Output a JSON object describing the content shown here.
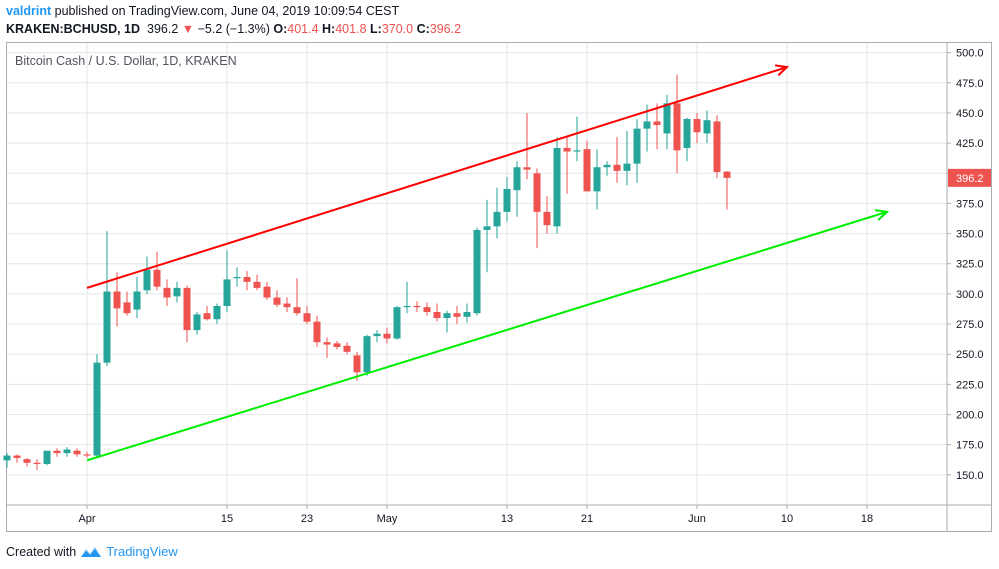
{
  "header": {
    "publisher": "valdrint",
    "published_text": "published on TradingView.com, June 04, 2019 10:09:54 CEST",
    "symbol": "KRAKEN:BCHUSD, 1D",
    "last": "396.2",
    "change_arrow": "▼",
    "change": "−5.2 (−1.3%)",
    "o_label": "O:",
    "o_value": "401.4",
    "h_label": "H:",
    "h_value": "401.8",
    "l_label": "L:",
    "l_value": "370.0",
    "c_label": "C:",
    "c_value": "396.2"
  },
  "footer": {
    "created_with": "Created with",
    "brand": "TradingView"
  },
  "colors": {
    "up": "#26a69a",
    "down": "#ef5350",
    "resistance": "#ff0000",
    "support": "#00ee00",
    "grid": "#e4e6ea",
    "brand": "#2196f3"
  },
  "chart_data": {
    "type": "candlestick",
    "title": "Bitcoin Cash / U.S. Dollar, 1D, KRAKEN",
    "last_price_label": "396.2",
    "y_ticks": [
      "500.0",
      "475.0",
      "450.0",
      "425.0",
      "400.0",
      "375.0",
      "350.0",
      "325.0",
      "300.0",
      "275.0",
      "250.0",
      "225.0",
      "200.0",
      "175.0",
      "150.0"
    ],
    "ylim": [
      125,
      508
    ],
    "x_ticks": [
      {
        "date": "2019-04-01",
        "label": "Apr"
      },
      {
        "date": "2019-04-15",
        "label": "15"
      },
      {
        "date": "2019-04-23",
        "label": "23"
      },
      {
        "date": "2019-05-01",
        "label": "May"
      },
      {
        "date": "2019-05-13",
        "label": "13"
      },
      {
        "date": "2019-05-21",
        "label": "21"
      },
      {
        "date": "2019-06-01",
        "label": "Jun"
      },
      {
        "date": "2019-06-10",
        "label": "10"
      },
      {
        "date": "2019-06-18",
        "label": "18"
      }
    ],
    "xlim": [
      "2019-03-24",
      "2019-06-26"
    ],
    "candles": [
      {
        "date": "2019-03-24",
        "o": 162,
        "h": 168,
        "l": 156,
        "c": 166
      },
      {
        "date": "2019-03-25",
        "o": 166,
        "h": 167,
        "l": 160,
        "c": 164
      },
      {
        "date": "2019-03-26",
        "o": 163,
        "h": 164,
        "l": 157,
        "c": 160
      },
      {
        "date": "2019-03-27",
        "o": 160,
        "h": 163,
        "l": 154,
        "c": 159
      },
      {
        "date": "2019-03-28",
        "o": 159,
        "h": 167,
        "l": 158,
        "c": 170
      },
      {
        "date": "2019-03-29",
        "o": 170,
        "h": 172,
        "l": 165,
        "c": 168
      },
      {
        "date": "2019-03-30",
        "o": 168,
        "h": 173,
        "l": 165,
        "c": 171
      },
      {
        "date": "2019-03-31",
        "o": 170,
        "h": 172,
        "l": 165,
        "c": 167
      },
      {
        "date": "2019-04-01",
        "o": 167,
        "h": 169,
        "l": 164,
        "c": 166
      },
      {
        "date": "2019-04-02",
        "o": 166,
        "h": 250,
        "l": 165,
        "c": 243
      },
      {
        "date": "2019-04-03",
        "o": 243,
        "h": 352,
        "l": 240,
        "c": 302
      },
      {
        "date": "2019-04-04",
        "o": 302,
        "h": 318,
        "l": 273,
        "c": 288
      },
      {
        "date": "2019-04-05",
        "o": 293,
        "h": 302,
        "l": 282,
        "c": 284
      },
      {
        "date": "2019-04-06",
        "o": 287,
        "h": 314,
        "l": 280,
        "c": 302
      },
      {
        "date": "2019-04-07",
        "o": 303,
        "h": 331,
        "l": 300,
        "c": 320
      },
      {
        "date": "2019-04-08",
        "o": 320,
        "h": 335,
        "l": 303,
        "c": 306
      },
      {
        "date": "2019-04-09",
        "o": 305,
        "h": 312,
        "l": 290,
        "c": 297
      },
      {
        "date": "2019-04-10",
        "o": 298,
        "h": 310,
        "l": 293,
        "c": 305
      },
      {
        "date": "2019-04-11",
        "o": 305,
        "h": 307,
        "l": 260,
        "c": 270
      },
      {
        "date": "2019-04-12",
        "o": 270,
        "h": 285,
        "l": 266,
        "c": 283
      },
      {
        "date": "2019-04-13",
        "o": 284,
        "h": 290,
        "l": 278,
        "c": 279
      },
      {
        "date": "2019-04-14",
        "o": 279,
        "h": 292,
        "l": 275,
        "c": 290
      },
      {
        "date": "2019-04-15",
        "o": 290,
        "h": 336,
        "l": 285,
        "c": 312
      },
      {
        "date": "2019-04-16",
        "o": 313,
        "h": 322,
        "l": 306,
        "c": 314
      },
      {
        "date": "2019-04-17",
        "o": 314,
        "h": 319,
        "l": 303,
        "c": 310
      },
      {
        "date": "2019-04-18",
        "o": 310,
        "h": 316,
        "l": 303,
        "c": 305
      },
      {
        "date": "2019-04-19",
        "o": 306,
        "h": 310,
        "l": 295,
        "c": 297
      },
      {
        "date": "2019-04-20",
        "o": 297,
        "h": 303,
        "l": 289,
        "c": 291
      },
      {
        "date": "2019-04-21",
        "o": 292,
        "h": 297,
        "l": 285,
        "c": 289
      },
      {
        "date": "2019-04-22",
        "o": 289,
        "h": 313,
        "l": 282,
        "c": 284
      },
      {
        "date": "2019-04-23",
        "o": 284,
        "h": 290,
        "l": 275,
        "c": 277
      },
      {
        "date": "2019-04-24",
        "o": 277,
        "h": 282,
        "l": 256,
        "c": 260
      },
      {
        "date": "2019-04-25",
        "o": 260,
        "h": 264,
        "l": 247,
        "c": 258
      },
      {
        "date": "2019-04-26",
        "o": 259,
        "h": 261,
        "l": 254,
        "c": 256
      },
      {
        "date": "2019-04-27",
        "o": 257,
        "h": 260,
        "l": 250,
        "c": 252
      },
      {
        "date": "2019-04-28",
        "o": 249,
        "h": 252,
        "l": 228,
        "c": 235
      },
      {
        "date": "2019-04-29",
        "o": 235,
        "h": 266,
        "l": 232,
        "c": 265
      },
      {
        "date": "2019-04-30",
        "o": 265,
        "h": 270,
        "l": 260,
        "c": 267
      },
      {
        "date": "2019-05-01",
        "o": 267,
        "h": 272,
        "l": 259,
        "c": 263
      },
      {
        "date": "2019-05-02",
        "o": 263,
        "h": 290,
        "l": 262,
        "c": 289
      },
      {
        "date": "2019-05-03",
        "o": 289,
        "h": 310,
        "l": 284,
        "c": 290
      },
      {
        "date": "2019-05-04",
        "o": 290,
        "h": 294,
        "l": 285,
        "c": 289
      },
      {
        "date": "2019-05-05",
        "o": 289,
        "h": 293,
        "l": 282,
        "c": 285
      },
      {
        "date": "2019-05-06",
        "o": 285,
        "h": 292,
        "l": 277,
        "c": 280
      },
      {
        "date": "2019-05-07",
        "o": 280,
        "h": 286,
        "l": 268,
        "c": 284
      },
      {
        "date": "2019-05-08",
        "o": 284,
        "h": 290,
        "l": 275,
        "c": 281
      },
      {
        "date": "2019-05-09",
        "o": 281,
        "h": 292,
        "l": 276,
        "c": 285
      },
      {
        "date": "2019-05-10",
        "o": 284,
        "h": 355,
        "l": 282,
        "c": 353
      },
      {
        "date": "2019-05-11",
        "o": 353,
        "h": 378,
        "l": 318,
        "c": 356
      },
      {
        "date": "2019-05-12",
        "o": 356,
        "h": 388,
        "l": 346,
        "c": 368
      },
      {
        "date": "2019-05-13",
        "o": 368,
        "h": 397,
        "l": 360,
        "c": 387
      },
      {
        "date": "2019-05-14",
        "o": 386,
        "h": 410,
        "l": 364,
        "c": 405
      },
      {
        "date": "2019-05-15",
        "o": 405,
        "h": 450,
        "l": 395,
        "c": 403
      },
      {
        "date": "2019-05-16",
        "o": 400,
        "h": 404,
        "l": 338,
        "c": 368
      },
      {
        "date": "2019-05-17",
        "o": 368,
        "h": 381,
        "l": 350,
        "c": 357
      },
      {
        "date": "2019-05-18",
        "o": 356,
        "h": 430,
        "l": 350,
        "c": 421
      },
      {
        "date": "2019-05-19",
        "o": 421,
        "h": 430,
        "l": 383,
        "c": 418
      },
      {
        "date": "2019-05-20",
        "o": 418,
        "h": 447,
        "l": 410,
        "c": 419
      },
      {
        "date": "2019-05-21",
        "o": 420,
        "h": 427,
        "l": 388,
        "c": 385
      },
      {
        "date": "2019-05-22",
        "o": 385,
        "h": 420,
        "l": 370,
        "c": 405
      },
      {
        "date": "2019-05-23",
        "o": 405,
        "h": 410,
        "l": 398,
        "c": 407
      },
      {
        "date": "2019-05-24",
        "o": 407,
        "h": 430,
        "l": 392,
        "c": 402
      },
      {
        "date": "2019-05-25",
        "o": 402,
        "h": 435,
        "l": 390,
        "c": 408
      },
      {
        "date": "2019-05-26",
        "o": 408,
        "h": 445,
        "l": 392,
        "c": 437
      },
      {
        "date": "2019-05-27",
        "o": 437,
        "h": 457,
        "l": 418,
        "c": 443
      },
      {
        "date": "2019-05-28",
        "o": 443,
        "h": 458,
        "l": 420,
        "c": 440
      },
      {
        "date": "2019-05-29",
        "o": 433,
        "h": 465,
        "l": 420,
        "c": 458
      },
      {
        "date": "2019-05-30",
        "o": 458,
        "h": 482,
        "l": 400,
        "c": 419
      },
      {
        "date": "2019-05-31",
        "o": 421,
        "h": 446,
        "l": 410,
        "c": 445
      },
      {
        "date": "2019-06-01",
        "o": 445,
        "h": 450,
        "l": 425,
        "c": 434
      },
      {
        "date": "2019-06-02",
        "o": 433,
        "h": 452,
        "l": 425,
        "c": 444
      },
      {
        "date": "2019-06-03",
        "o": 443,
        "h": 448,
        "l": 396,
        "c": 401
      },
      {
        "date": "2019-06-04",
        "o": 401.4,
        "h": 401.8,
        "l": 370.0,
        "c": 396.2
      }
    ],
    "trend_lines": [
      {
        "name": "resistance",
        "color": "#ff0000",
        "from": {
          "date": "2019-04-01",
          "value": 305
        },
        "to": {
          "date": "2019-06-10",
          "value": 488
        }
      },
      {
        "name": "support",
        "color": "#00ee00",
        "from": {
          "date": "2019-04-01",
          "value": 162
        },
        "to": {
          "date": "2019-06-20",
          "value": 368
        }
      }
    ],
    "grid": true
  }
}
